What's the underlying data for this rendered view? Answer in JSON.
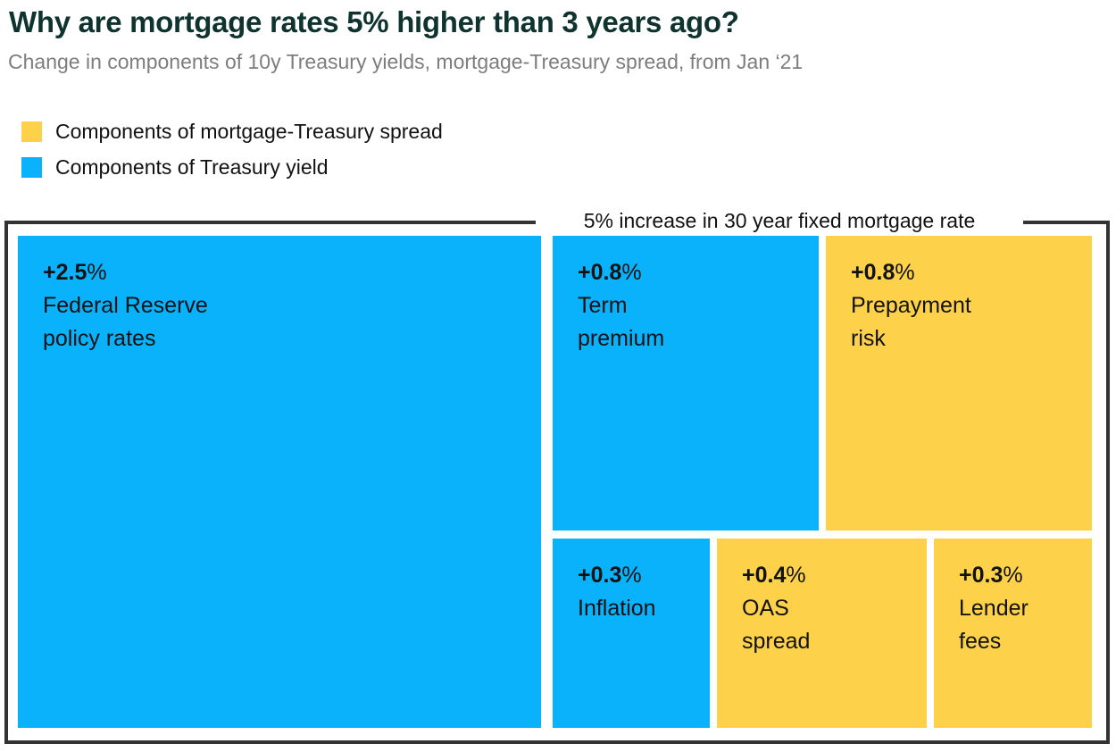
{
  "header": {
    "title": "Why are mortgage rates 5% higher than 3 years ago?",
    "subtitle": "Change in components of 10y Treasury yields, mortgage-Treasury spread, from Jan ‘21"
  },
  "legend": {
    "items": [
      {
        "label": "Components of mortgage-Treasury spread",
        "color": "#fdd24a"
      },
      {
        "label": "Components of Treasury yield",
        "color": "#0ab1fb"
      }
    ]
  },
  "chart_data": {
    "type": "treemap",
    "title": "Why are mortgage rates 5% higher than 3 years ago?",
    "subtitle": "Change in components of 10y Treasury yields, mortgage-Treasury spread, from Jan ‘21",
    "total_label": "5% increase in 30 year fixed mortgage rate",
    "total_value_pct": 5,
    "units": "percentage points",
    "colors": {
      "treasury_yield": "#0ab1fb",
      "mortgage_treasury_spread": "#fdd24a",
      "frame": "#333333"
    },
    "cells": [
      {
        "name": "Federal Reserve policy rates",
        "value": 2.5,
        "value_label": "+2.5",
        "unit": "%",
        "label": "Federal Reserve\npolicy rates",
        "group": "Components of Treasury yield",
        "color": "#0ab1fb"
      },
      {
        "name": "Term premium",
        "value": 0.8,
        "value_label": "+0.8",
        "unit": "%",
        "label": "Term\npremium",
        "group": "Components of Treasury yield",
        "color": "#0ab1fb"
      },
      {
        "name": "Prepayment risk",
        "value": 0.8,
        "value_label": "+0.8",
        "unit": "%",
        "label": "Prepayment\nrisk",
        "group": "Components of mortgage-Treasury spread",
        "color": "#fdd24a"
      },
      {
        "name": "Inflation",
        "value": 0.3,
        "value_label": "+0.3",
        "unit": "%",
        "label": "Inflation",
        "group": "Components of Treasury yield",
        "color": "#0ab1fb"
      },
      {
        "name": "OAS spread",
        "value": 0.4,
        "value_label": "+0.4",
        "unit": "%",
        "label": "OAS\nspread",
        "group": "Components of mortgage-Treasury spread",
        "color": "#fdd24a"
      },
      {
        "name": "Lender fees",
        "value": 0.3,
        "value_label": "+0.3",
        "unit": "%",
        "label": "Lender\nfees",
        "group": "Components of mortgage-Treasury spread",
        "color": "#fdd24a"
      }
    ]
  }
}
